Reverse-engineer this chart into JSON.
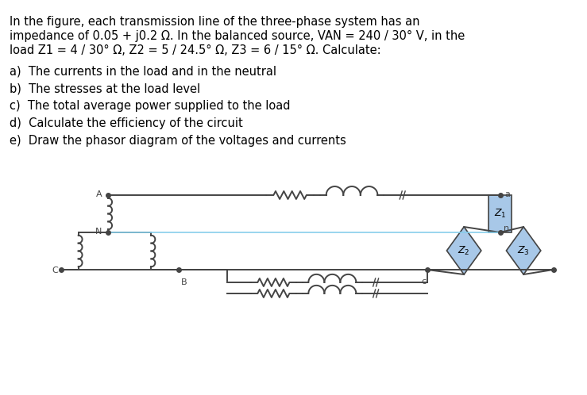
{
  "text_lines": [
    "In the figure, each transmission line of the three-phase system has an",
    "impedance of 0.05 + j0.2 Ω. In the balanced source, VAN = 240 / 30° V, in the",
    "load Z1 = 4 / 30° Ω, Z2 = 5 / 24.5° Ω, Z3 = 6 / 15° Ω. Calculate:",
    "a)  The currents in the load and in the neutral",
    "b)  The stresses at the load level",
    "c)  The total average power supplied to the load",
    "d)  Calculate the efficiency of the circuit",
    "e)  Draw the phasor diagram of the voltages and currents"
  ],
  "bg_color": "#ffffff",
  "text_color": "#000000",
  "circuit_color": "#444444",
  "z1_color": "#a8c8e8",
  "z2_color": "#a8c8e8",
  "z3_color": "#a8c8e8",
  "neutral_line_color": "#87CEEB",
  "font_size": 10.5
}
